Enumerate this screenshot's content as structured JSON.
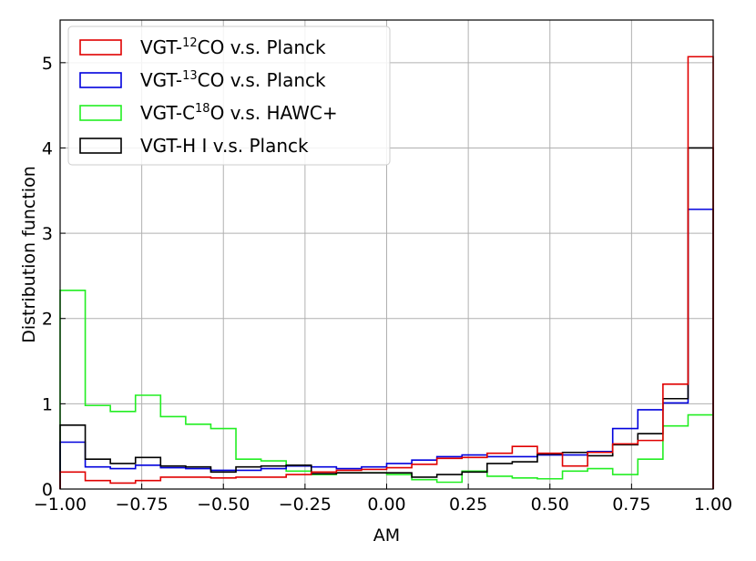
{
  "chart_data": {
    "type": "step-histogram",
    "xlabel": "AM",
    "ylabel": "Distribution function",
    "xlim": [
      -1.0,
      1.0
    ],
    "ylim": [
      0,
      5.5
    ],
    "xticks": [
      "−1.00",
      "−0.75",
      "−0.50",
      "−0.25",
      "0.00",
      "0.25",
      "0.50",
      "0.75",
      "1.00"
    ],
    "xtick_values": [
      -1.0,
      -0.75,
      -0.5,
      -0.25,
      0.0,
      0.25,
      0.5,
      0.75,
      1.0
    ],
    "yticks": [
      "0",
      "1",
      "2",
      "3",
      "4",
      "5"
    ],
    "ytick_values": [
      0,
      1,
      2,
      3,
      4,
      5
    ],
    "grid": true,
    "legend_position": "top-left",
    "bins": 26,
    "bin_range": [
      -1.0,
      1.0
    ],
    "series": [
      {
        "key": "co12",
        "legend_parts": [
          "VGT-",
          "12",
          "CO v.s. Planck"
        ],
        "color": "#e00000",
        "values": [
          0.2,
          0.1,
          0.07,
          0.1,
          0.14,
          0.14,
          0.13,
          0.14,
          0.14,
          0.17,
          0.2,
          0.22,
          0.23,
          0.25,
          0.29,
          0.36,
          0.37,
          0.42,
          0.5,
          0.42,
          0.27,
          0.43,
          0.53,
          0.57,
          1.23,
          5.07
        ]
      },
      {
        "key": "co13",
        "legend_parts": [
          "VGT-",
          "13",
          "CO v.s. Planck"
        ],
        "color": "#0000dd",
        "values": [
          0.55,
          0.26,
          0.24,
          0.28,
          0.25,
          0.24,
          0.22,
          0.22,
          0.24,
          0.27,
          0.26,
          0.24,
          0.26,
          0.3,
          0.34,
          0.38,
          0.4,
          0.38,
          0.38,
          0.4,
          0.4,
          0.44,
          0.71,
          0.93,
          1.01,
          3.28
        ]
      },
      {
        "key": "c18o",
        "legend_parts": [
          "VGT-C",
          "18",
          "O v.s. HAWC+"
        ],
        "color": "#22ee22",
        "values": [
          2.33,
          0.98,
          0.91,
          1.1,
          0.85,
          0.76,
          0.71,
          0.35,
          0.33,
          0.21,
          0.17,
          0.19,
          0.19,
          0.17,
          0.11,
          0.08,
          0.21,
          0.15,
          0.13,
          0.12,
          0.21,
          0.24,
          0.17,
          0.35,
          0.74,
          0.87
        ]
      },
      {
        "key": "hi",
        "legend_parts": [
          "VGT-H I v.s. Planck",
          "",
          ""
        ],
        "color": "#000000",
        "values": [
          0.75,
          0.35,
          0.3,
          0.37,
          0.27,
          0.26,
          0.2,
          0.26,
          0.27,
          0.28,
          0.18,
          0.19,
          0.19,
          0.19,
          0.14,
          0.17,
          0.2,
          0.3,
          0.32,
          0.41,
          0.43,
          0.39,
          0.52,
          0.65,
          1.06,
          4.0
        ]
      }
    ]
  }
}
